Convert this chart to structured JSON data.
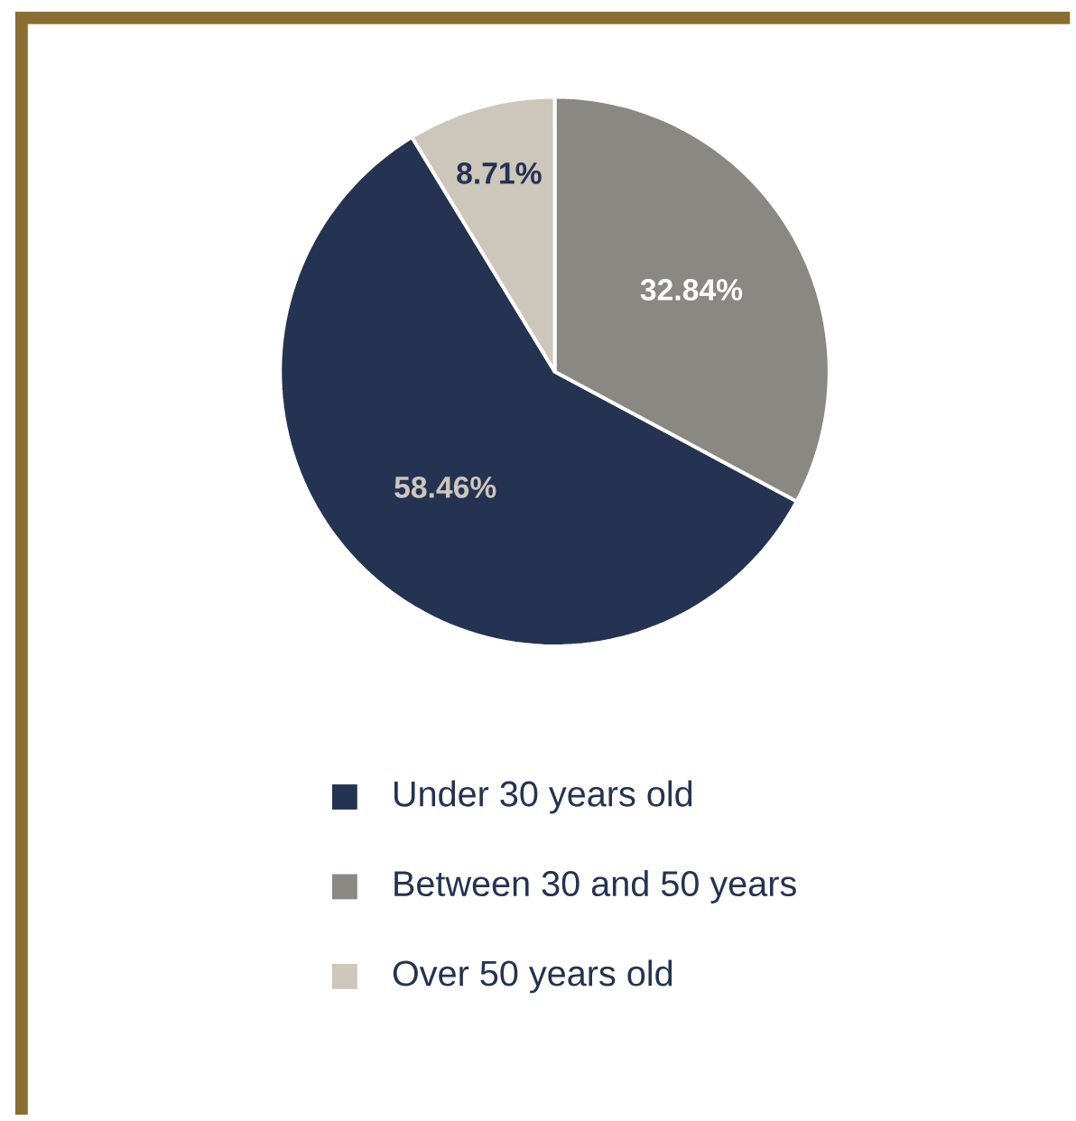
{
  "chart_data": {
    "type": "pie",
    "categories": [
      "Under 30 years old",
      "Between 30 and 50 years",
      "Over 50 years old"
    ],
    "values": [
      58.46,
      32.84,
      8.71
    ],
    "colors": [
      "#243352",
      "#8a8882",
      "#cdc6bb"
    ],
    "value_labels": [
      "58.46%",
      "32.84%",
      "8.71%"
    ],
    "legend": "bottom"
  }
}
